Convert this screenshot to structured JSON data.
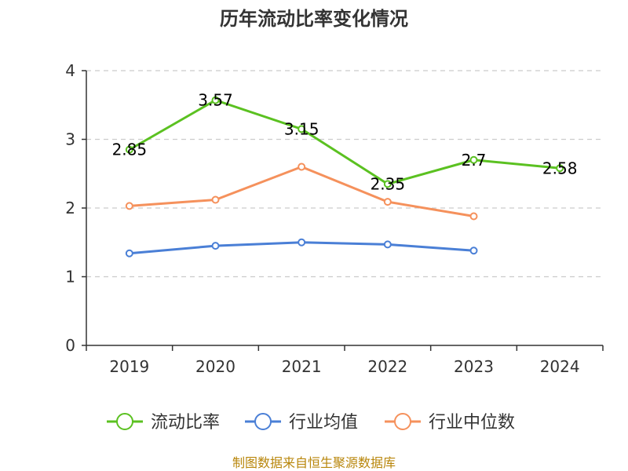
{
  "chart_data": {
    "type": "line",
    "title": "历年流动比率变化情况",
    "categories": [
      "2019",
      "2020",
      "2021",
      "2022",
      "2023",
      "2024"
    ],
    "ylim": [
      0,
      4
    ],
    "yticks": [
      "0",
      "1",
      "2",
      "3",
      "4"
    ],
    "grid": true,
    "legend_position": "bottom",
    "series": [
      {
        "name": "流动比率",
        "color": "#5bc121",
        "values": [
          2.85,
          3.57,
          3.15,
          2.35,
          2.7,
          2.58
        ],
        "labels": [
          "2.85",
          "3.57",
          "3.15",
          "2.35",
          "2.7",
          "2.58"
        ]
      },
      {
        "name": "行业均值",
        "color": "#4a7fd6",
        "values": [
          1.34,
          1.45,
          1.5,
          1.47,
          1.38,
          null
        ]
      },
      {
        "name": "行业中位数",
        "color": "#f5915c",
        "values": [
          2.03,
          2.12,
          2.6,
          2.09,
          1.88,
          null
        ]
      }
    ]
  },
  "footer": "制图数据来自恒生聚源数据库"
}
